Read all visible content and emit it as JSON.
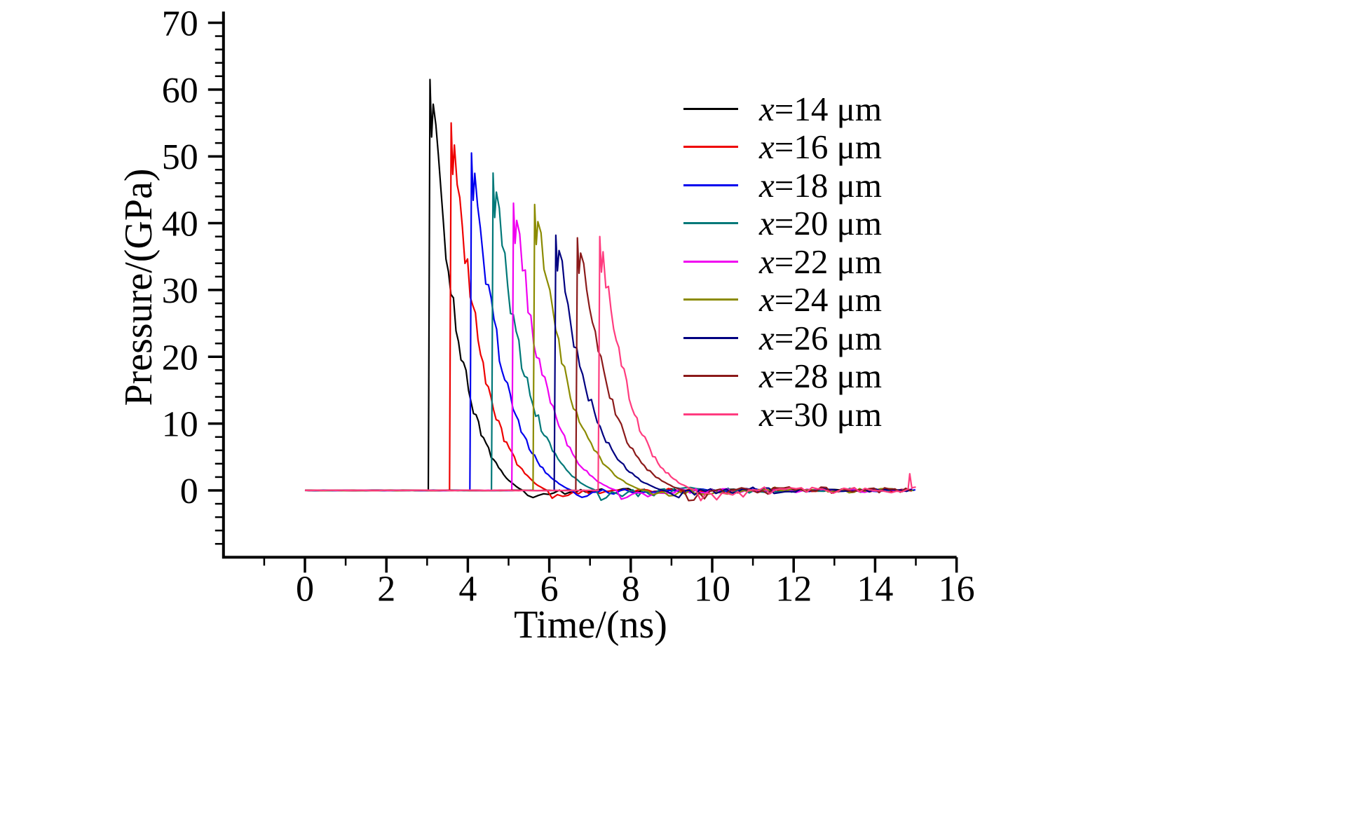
{
  "chart_data": {
    "type": "line",
    "title": "",
    "xlabel": "Time/(ns)",
    "ylabel": "Pressure/(GPa)",
    "xlim": [
      -2,
      16
    ],
    "ylim": [
      -10,
      70
    ],
    "x_ticks": [
      0,
      2,
      4,
      6,
      8,
      10,
      12,
      14,
      16
    ],
    "y_ticks": [
      0,
      10,
      20,
      30,
      40,
      50,
      60,
      70
    ],
    "x_minor_step": 1,
    "y_minor_step": 2,
    "grid": false,
    "legend_position": "upper right",
    "t_end_ns": 15.0,
    "series": [
      {
        "label": "x=14 μm",
        "color": "#000000",
        "arrival_ns": 3.03,
        "peak_GPa": 61.5,
        "zero_cross_ns": 5.35,
        "tail_noise_GPa": 0.4
      },
      {
        "label": "x=16 μm",
        "color": "#ee0000",
        "arrival_ns": 3.55,
        "peak_GPa": 55.0,
        "zero_cross_ns": 5.95,
        "tail_noise_GPa": 0.4
      },
      {
        "label": "x=18 μm",
        "color": "#0000ee",
        "arrival_ns": 4.05,
        "peak_GPa": 50.5,
        "zero_cross_ns": 6.55,
        "tail_noise_GPa": 0.5
      },
      {
        "label": "x=20 μm",
        "color": "#007878",
        "arrival_ns": 4.58,
        "peak_GPa": 47.5,
        "zero_cross_ns": 7.15,
        "tail_noise_GPa": 0.8
      },
      {
        "label": "x=22 μm",
        "color": "#f000f0",
        "arrival_ns": 5.08,
        "peak_GPa": 43.0,
        "zero_cross_ns": 7.65,
        "tail_noise_GPa": 0.6
      },
      {
        "label": "x=24 μm",
        "color": "#8b8b00",
        "arrival_ns": 5.6,
        "peak_GPa": 42.8,
        "zero_cross_ns": 8.3,
        "tail_noise_GPa": 0.8
      },
      {
        "label": "x=26 μm",
        "color": "#000080",
        "arrival_ns": 6.12,
        "peak_GPa": 38.2,
        "zero_cross_ns": 8.8,
        "tail_noise_GPa": 0.7
      },
      {
        "label": "x=28 μm",
        "color": "#8b1a1a",
        "arrival_ns": 6.65,
        "peak_GPa": 37.8,
        "zero_cross_ns": 9.3,
        "tail_noise_GPa": 0.9
      },
      {
        "label": "x=30 μm",
        "color": "#ff3c7f",
        "arrival_ns": 7.2,
        "peak_GPa": 38.0,
        "zero_cross_ns": 9.6,
        "tail_noise_GPa": 0.9,
        "end_spike_ns": 14.85,
        "end_spike_GPa": 2.5
      }
    ]
  }
}
